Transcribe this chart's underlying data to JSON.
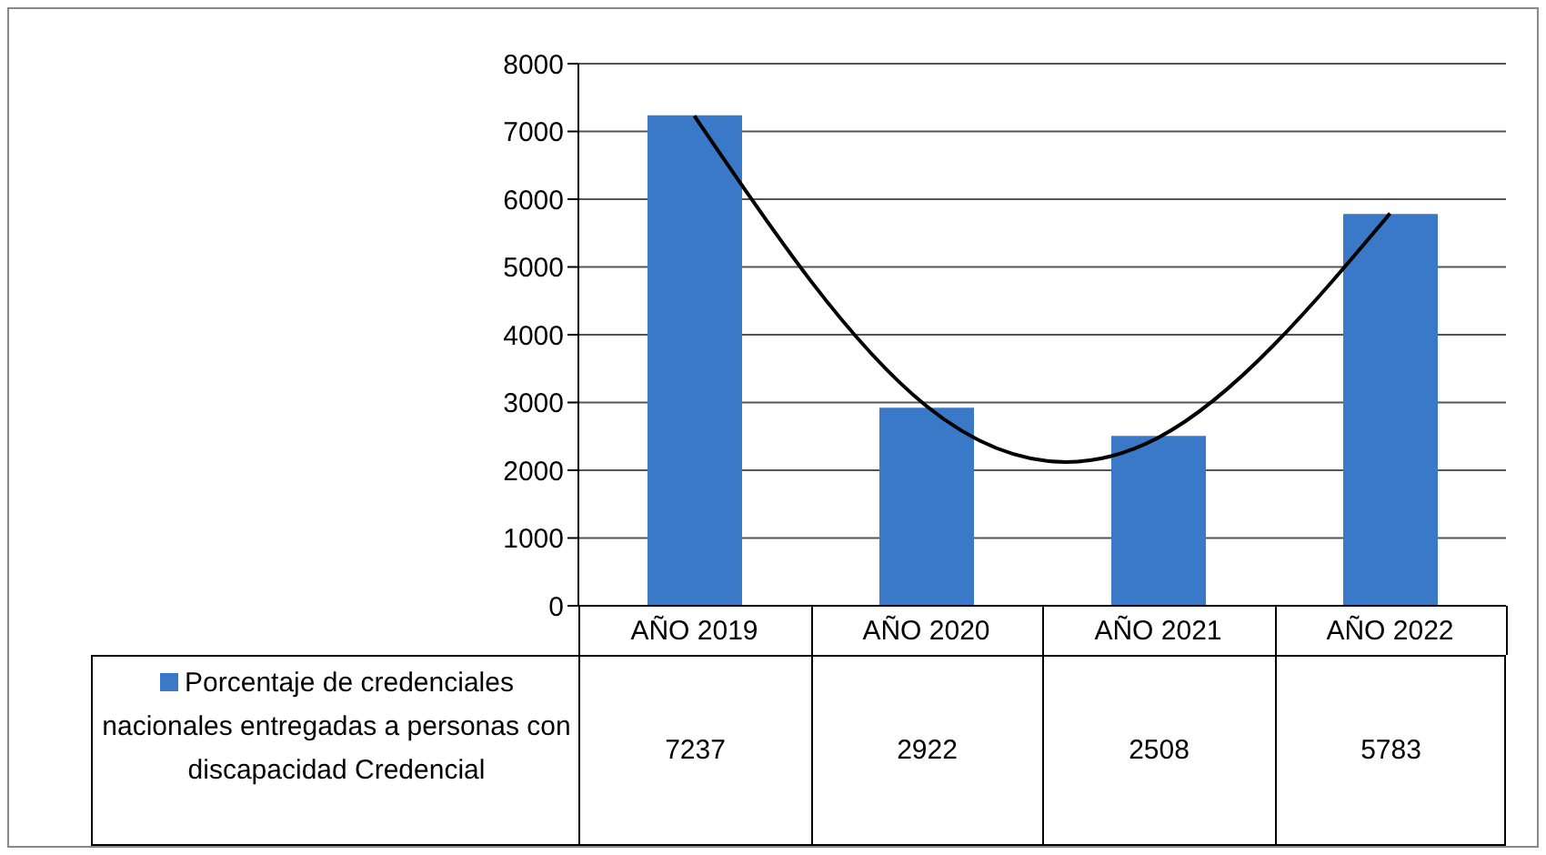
{
  "chart_data": {
    "type": "bar",
    "categories": [
      "AÑO 2019",
      "AÑO 2020",
      "AÑO 2021",
      "AÑO 2022"
    ],
    "series": [
      {
        "name": "Porcentaje de credenciales nacionales entregadas a personas con discapacidad Credencial",
        "color": "#3a78c8",
        "values": [
          7237,
          2922,
          2508,
          5783
        ],
        "value_labels": [
          "7237",
          "2922",
          "2508",
          "5783"
        ]
      },
      {
        "type": "line",
        "color": "#000000",
        "x": [
          "AÑO 2019",
          "AÑO 2020",
          "AÑO 2021",
          "AÑO 2022"
        ],
        "values": [
          7230,
          2950,
          2480,
          5790
        ]
      }
    ],
    "ylim": [
      0,
      8000
    ],
    "yticks": [
      0,
      1000,
      2000,
      3000,
      4000,
      5000,
      6000,
      7000,
      8000
    ],
    "grid": "y",
    "legend": "bottom",
    "marker": "none"
  }
}
